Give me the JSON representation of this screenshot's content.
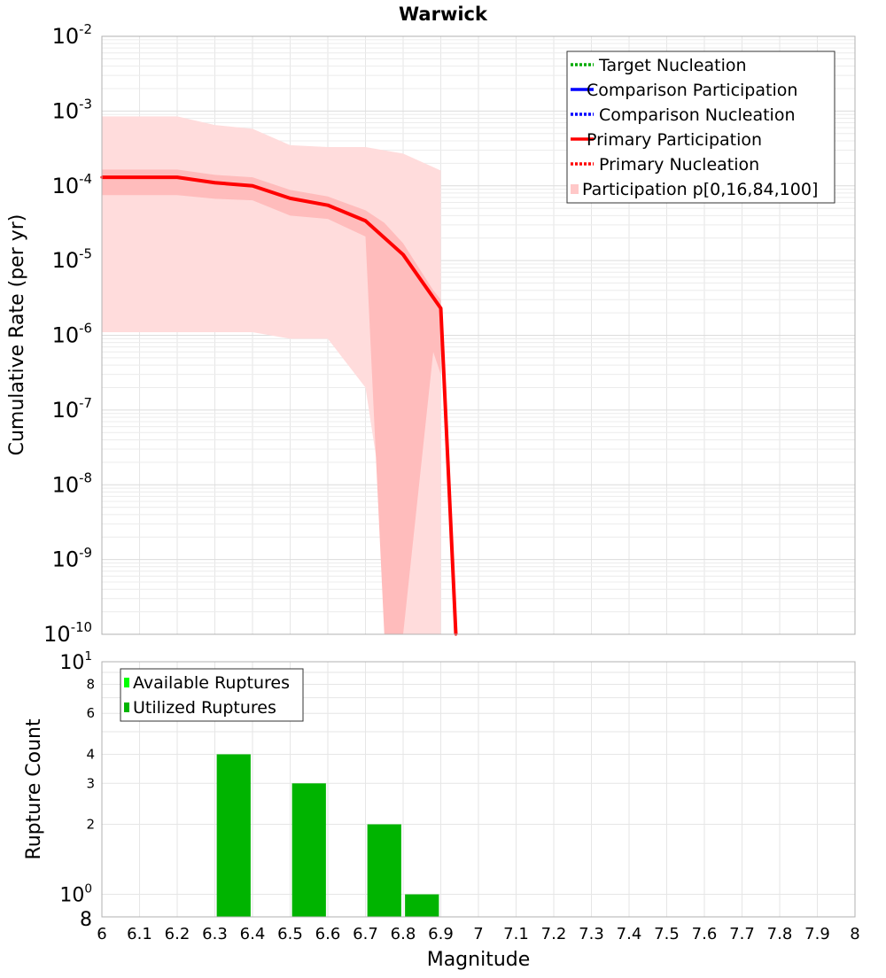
{
  "chart_data": [
    {
      "type": "line",
      "title": "Warwick",
      "ylabel": "Cumulative Rate (per yr)",
      "xlabel": "",
      "xlim": [
        6,
        8
      ],
      "ylim": [
        1e-10,
        0.01
      ],
      "yscale": "log",
      "grid": true,
      "legend_position": "top-right",
      "y_ticks": [
        {
          "value": 0.01,
          "base": "10",
          "exp": "-2"
        },
        {
          "value": 0.001,
          "base": "10",
          "exp": "-3"
        },
        {
          "value": 0.0001,
          "base": "10",
          "exp": "-4"
        },
        {
          "value": 1e-05,
          "base": "10",
          "exp": "-5"
        },
        {
          "value": 1e-06,
          "base": "10",
          "exp": "-6"
        },
        {
          "value": 1e-07,
          "base": "10",
          "exp": "-7"
        },
        {
          "value": 1e-08,
          "base": "10",
          "exp": "-8"
        },
        {
          "value": 1e-09,
          "base": "10",
          "exp": "-9"
        },
        {
          "value": 1e-10,
          "base": "10",
          "exp": "-10"
        }
      ],
      "legend": [
        {
          "label": "Target Nucleation",
          "color": "#00aa00",
          "style": "dotted"
        },
        {
          "label": "Comparison Participation",
          "color": "#0000ff",
          "style": "solid"
        },
        {
          "label": "Comparison Nucleation",
          "color": "#0000ff",
          "style": "dotted"
        },
        {
          "label": "Primary Participation",
          "color": "#ff0000",
          "style": "solid"
        },
        {
          "label": "Primary Nucleation",
          "color": "#ff0000",
          "style": "dotted"
        },
        {
          "label": "Participation p[0,16,84,100]",
          "color": "#ffc8c8",
          "style": "fill"
        }
      ],
      "series": [
        {
          "name": "Primary Participation",
          "color": "#ff0000",
          "x": [
            6.0,
            6.2,
            6.3,
            6.4,
            6.5,
            6.6,
            6.7,
            6.8,
            6.9,
            6.94
          ],
          "y": [
            0.00013,
            0.00013,
            0.00011,
            0.0001,
            6.8e-05,
            5.5e-05,
            3.4e-05,
            1.2e-05,
            2.3e-06,
            1e-10
          ]
        },
        {
          "name": "Participation p[0,100]",
          "color": "#ffdcdc",
          "x": [
            6.0,
            6.2,
            6.3,
            6.4,
            6.5,
            6.6,
            6.7,
            6.8,
            6.9
          ],
          "upper": [
            0.00085,
            0.00085,
            0.00065,
            0.00058,
            0.00035,
            0.00033,
            0.00033,
            0.00027,
            0.00016
          ],
          "lower": [
            1.1e-06,
            1.1e-06,
            1.1e-06,
            1.1e-06,
            9e-07,
            9e-07,
            2e-07,
            1e-10,
            1e-10
          ]
        },
        {
          "name": "Participation p[16,84]",
          "color": "#ffbcbc",
          "x": [
            6.0,
            6.2,
            6.3,
            6.4,
            6.5,
            6.6,
            6.7,
            6.75,
            6.8,
            6.88,
            6.9
          ],
          "upper": [
            0.000165,
            0.000165,
            0.00014,
            0.00013,
            8.8e-05,
            7.2e-05,
            4.7e-05,
            3.2e-05,
            1.7e-05,
            4e-06,
            3e-06
          ],
          "lower": [
            7.5e-05,
            7.5e-05,
            6.7e-05,
            6.4e-05,
            4e-05,
            3.6e-05,
            2.1e-05,
            1e-10,
            1e-10,
            6e-07,
            3e-07
          ]
        }
      ]
    },
    {
      "type": "bar",
      "title": "",
      "ylabel": "Rupture Count",
      "xlabel": "Magnitude",
      "xlim": [
        6,
        8
      ],
      "ylim": [
        0.8,
        10
      ],
      "yscale": "log",
      "grid": true,
      "legend_position": "top-left",
      "x_ticks": [
        "6",
        "6.1",
        "6.2",
        "6.3",
        "6.4",
        "6.5",
        "6.6",
        "6.7",
        "6.8",
        "6.9",
        "7",
        "7.1",
        "7.2",
        "7.3",
        "7.4",
        "7.5",
        "7.6",
        "7.7",
        "7.8",
        "7.9",
        "8"
      ],
      "y_ticks": [
        {
          "value": 10,
          "label": "10",
          "exp": "1"
        },
        {
          "value": 8,
          "label": "8",
          "exp": ""
        },
        {
          "value": 6,
          "label": "6",
          "exp": ""
        },
        {
          "value": 4,
          "label": "4",
          "exp": ""
        },
        {
          "value": 3,
          "label": "3",
          "exp": ""
        },
        {
          "value": 2,
          "label": "2",
          "exp": ""
        },
        {
          "value": 1,
          "label": "10",
          "exp": "0"
        },
        {
          "value": 0.8,
          "label": "8",
          "exp": ""
        }
      ],
      "legend": [
        {
          "label": "Available Ruptures",
          "color": "#00ff00"
        },
        {
          "label": "Utilized Ruptures",
          "color": "#00b400"
        }
      ],
      "bar_width": 0.09,
      "series": [
        {
          "name": "Utilized Ruptures",
          "color": "#00b400",
          "x": [
            6.35,
            6.55,
            6.75,
            6.85
          ],
          "values": [
            4,
            3,
            2,
            1
          ]
        }
      ]
    }
  ]
}
